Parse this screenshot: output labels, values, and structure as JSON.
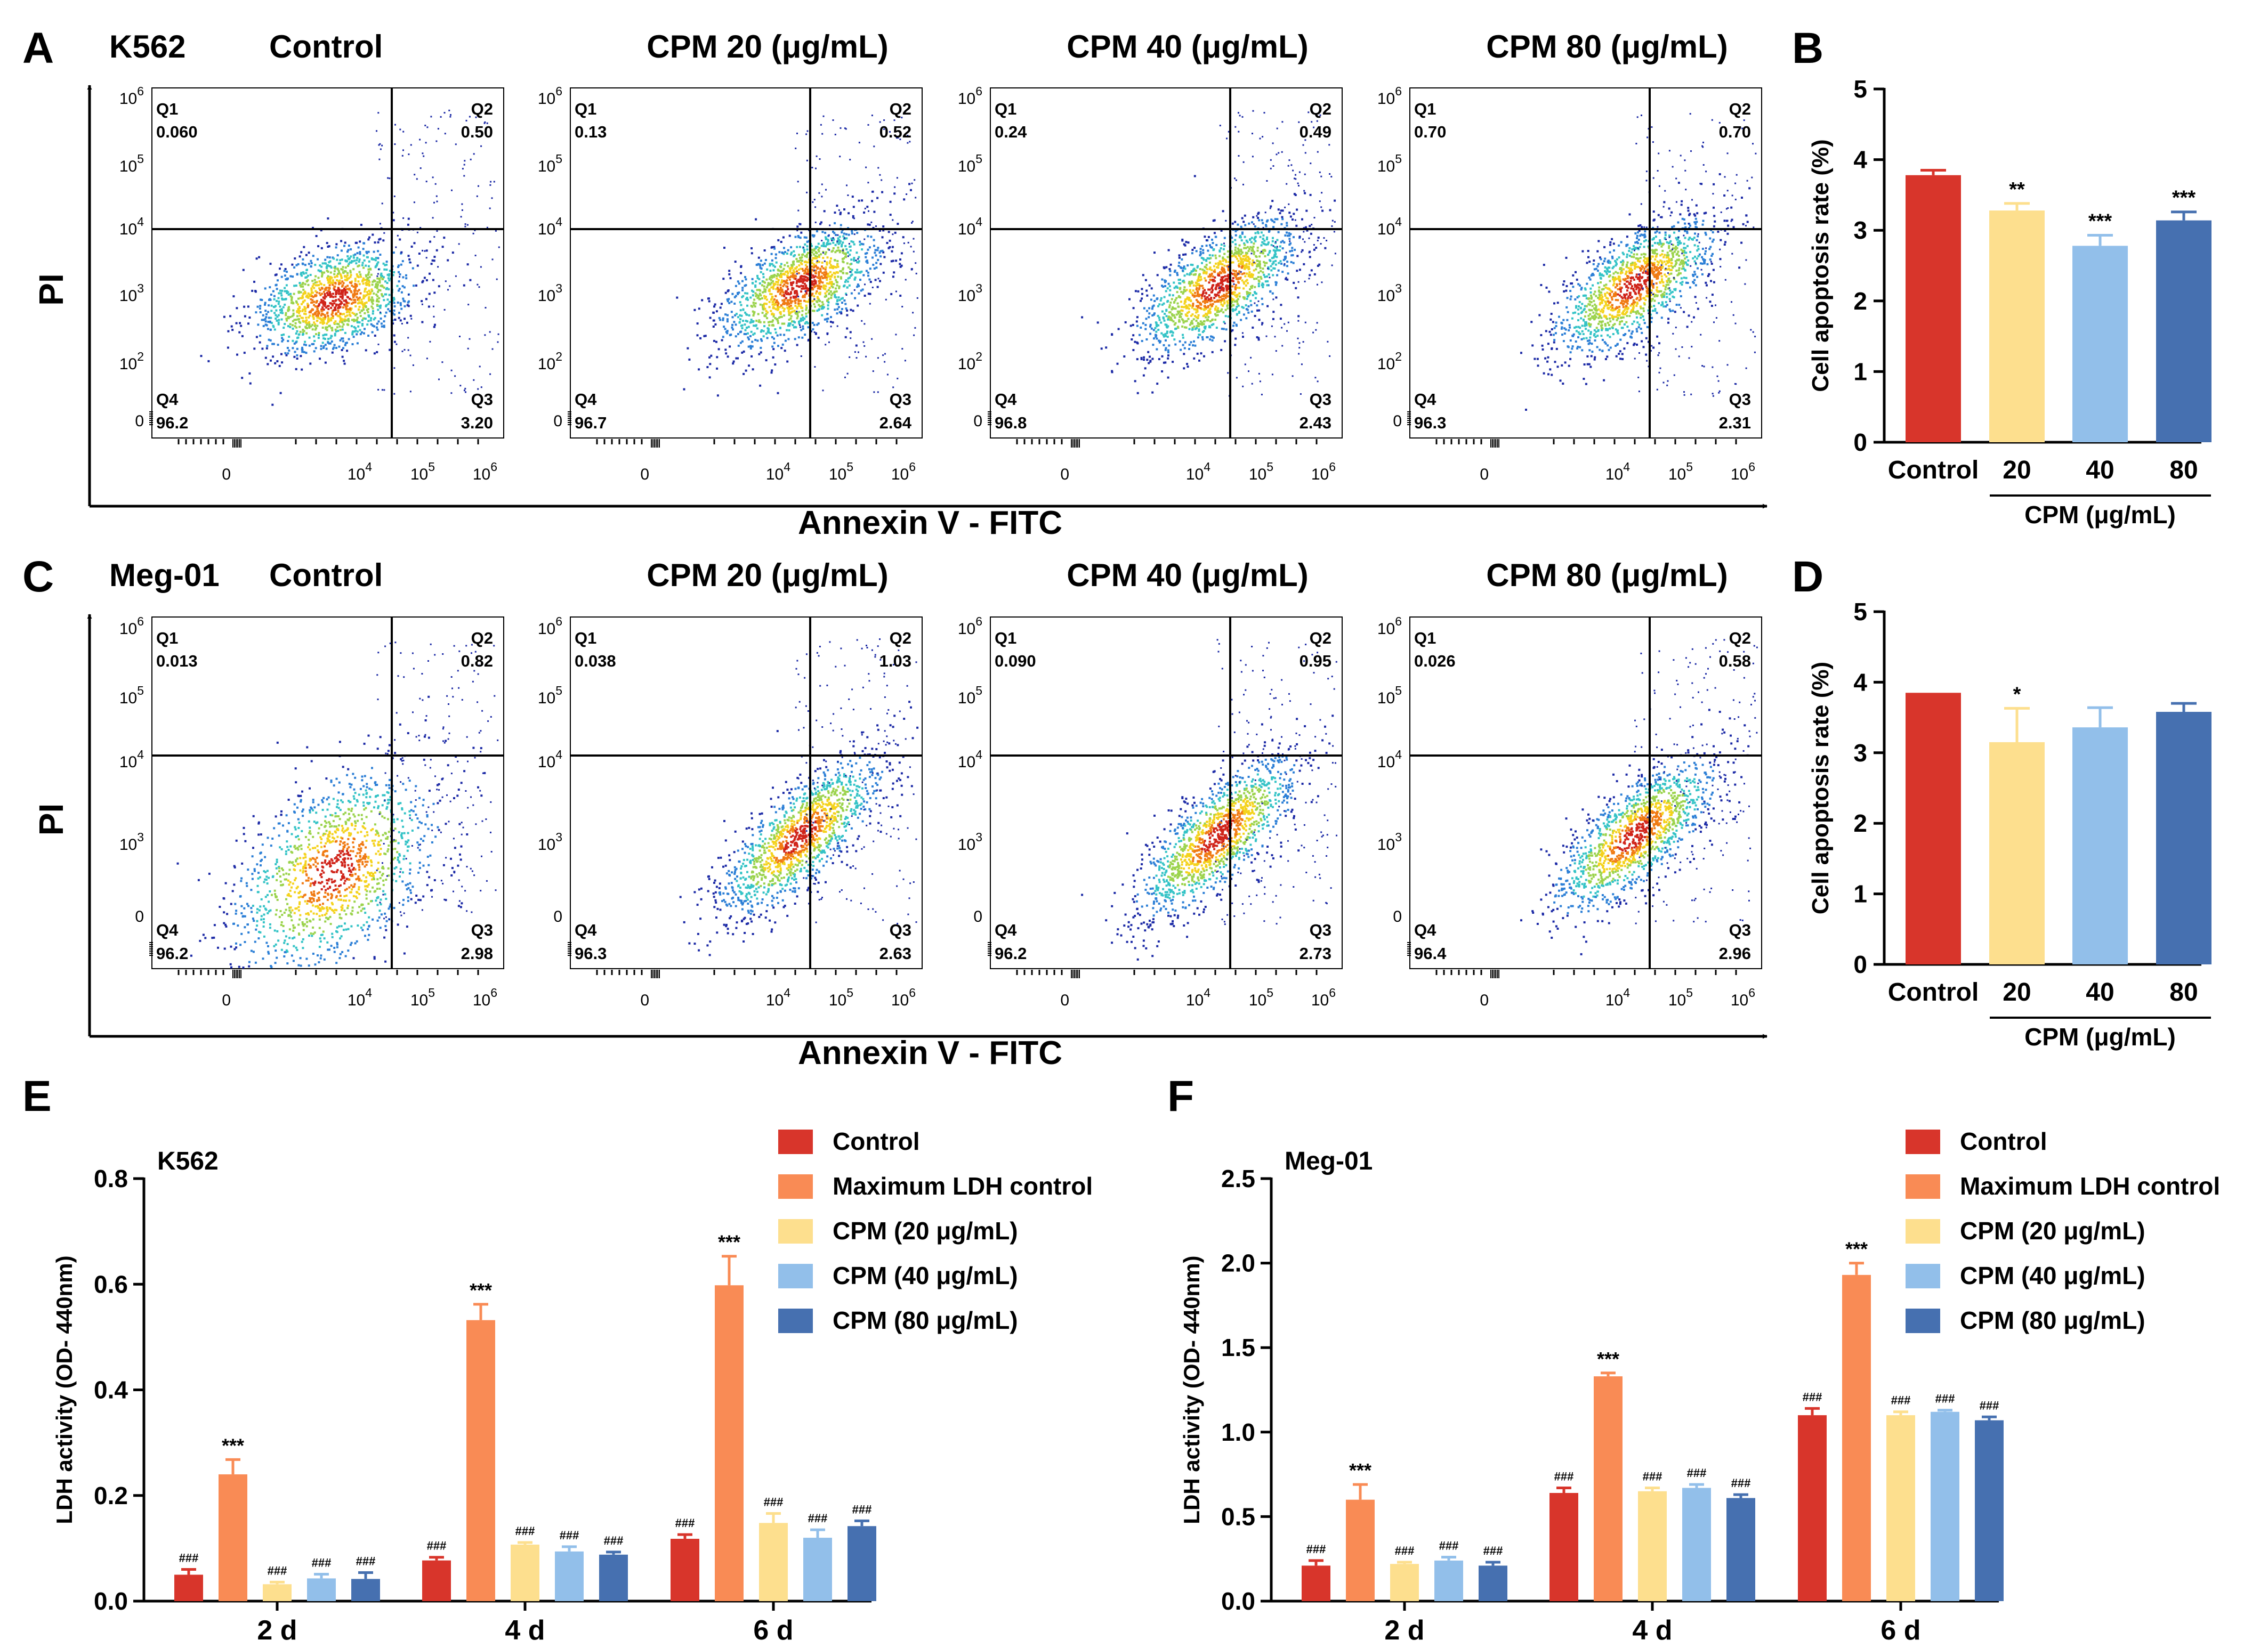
{
  "colors": {
    "control": "#d8352b",
    "max_ldh": "#f98b55",
    "cpm20": "#fddf8e",
    "cpm40": "#92bfea",
    "cpm80": "#4670b0",
    "axis": "#000000",
    "flow_density": [
      "#1c2aa6",
      "#2c7fd6",
      "#34c3c6",
      "#9bd34c",
      "#f4d21c",
      "#f07a12",
      "#d0241a"
    ]
  },
  "panels": {
    "A": {
      "letter": "A",
      "cell_line": "K562",
      "titles": [
        "Control",
        "CPM 20 (μg/mL)",
        "CPM 40 (μg/mL)",
        "CPM 80 (μg/mL)"
      ],
      "y_axis_label": "PI",
      "x_axis_label": "Annexin V - FITC"
    },
    "C": {
      "letter": "C",
      "cell_line": "Meg-01",
      "titles": [
        "Control",
        "CPM 20 (μg/mL)",
        "CPM 40 (μg/mL)",
        "CPM 80 (μg/mL)"
      ],
      "y_axis_label": "PI",
      "x_axis_label": "Annexin V - FITC"
    },
    "B": {
      "letter": "B"
    },
    "D": {
      "letter": "D"
    },
    "E": {
      "letter": "E"
    },
    "F": {
      "letter": "F"
    }
  },
  "flow_labels": {
    "y_ticks_A": [
      {
        "base": "10",
        "exp": "6"
      },
      {
        "base": "10",
        "exp": "5"
      },
      {
        "base": "10",
        "exp": "4"
      },
      {
        "base": "10",
        "exp": "3"
      },
      {
        "base": "10",
        "exp": "2"
      },
      {
        "base": "0",
        "exp": ""
      }
    ],
    "y_ticks_C": [
      {
        "base": "10",
        "exp": "6"
      },
      {
        "base": "10",
        "exp": "5"
      },
      {
        "base": "10",
        "exp": "4"
      },
      {
        "base": "10",
        "exp": "3"
      },
      {
        "base": "0",
        "exp": ""
      }
    ],
    "x_ticks": [
      {
        "base": "0",
        "exp": ""
      },
      {
        "base": "10",
        "exp": "4"
      },
      {
        "base": "10",
        "exp": "5"
      },
      {
        "base": "10",
        "exp": "6"
      }
    ],
    "quadrant_names": [
      "Q1",
      "Q2",
      "Q3",
      "Q4"
    ]
  },
  "chart_data": [
    {
      "id": "A",
      "type": "flow-cytometry-quadrants",
      "cell_line": "K562",
      "x_label": "Annexin V - FITC",
      "y_label": "PI",
      "plots": [
        {
          "title": "Control",
          "Q1": "0.060",
          "Q2": "0.50",
          "Q3": "3.20",
          "Q4": "96.2"
        },
        {
          "title": "CPM 20 (μg/mL)",
          "Q1": "0.13",
          "Q2": "0.52",
          "Q3": "2.64",
          "Q4": "96.7"
        },
        {
          "title": "CPM 40 (μg/mL)",
          "Q1": "0.24",
          "Q2": "0.49",
          "Q3": "2.43",
          "Q4": "96.8"
        },
        {
          "title": "CPM 80 (μg/mL)",
          "Q1": "0.70",
          "Q2": "0.70",
          "Q3": "2.31",
          "Q4": "96.3"
        }
      ]
    },
    {
      "id": "B",
      "type": "bar",
      "ylabel": "Cell apoptosis rate (%)",
      "ylim": [
        0,
        5
      ],
      "yticks": [
        "0",
        "1",
        "2",
        "3",
        "4",
        "5"
      ],
      "categories": [
        "Control",
        "20",
        "40",
        "80"
      ],
      "group_label": "CPM (μg/mL)",
      "values": [
        3.78,
        3.28,
        2.78,
        3.14
      ],
      "errors": [
        0.07,
        0.1,
        0.15,
        0.12
      ],
      "significance": [
        "",
        "**",
        "***",
        "***"
      ]
    },
    {
      "id": "C",
      "type": "flow-cytometry-quadrants",
      "cell_line": "Meg-01",
      "x_label": "Annexin V - FITC",
      "y_label": "PI",
      "plots": [
        {
          "title": "Control",
          "Q1": "0.013",
          "Q2": "0.82",
          "Q3": "2.98",
          "Q4": "96.2"
        },
        {
          "title": "CPM 20 (μg/mL)",
          "Q1": "0.038",
          "Q2": "1.03",
          "Q3": "2.63",
          "Q4": "96.3"
        },
        {
          "title": "CPM 40 (μg/mL)",
          "Q1": "0.090",
          "Q2": "0.95",
          "Q3": "2.73",
          "Q4": "96.2"
        },
        {
          "title": "CPM 80 (μg/mL)",
          "Q1": "0.026",
          "Q2": "0.58",
          "Q3": "2.96",
          "Q4": "96.4"
        }
      ]
    },
    {
      "id": "D",
      "type": "bar",
      "ylabel": "Cell apoptosis rate (%)",
      "ylim": [
        0,
        5
      ],
      "yticks": [
        "0",
        "1",
        "2",
        "3",
        "4",
        "5"
      ],
      "categories": [
        "Control",
        "20",
        "40",
        "80"
      ],
      "group_label": "CPM (μg/mL)",
      "values": [
        3.85,
        3.15,
        3.36,
        3.58
      ],
      "errors": [
        0.0,
        0.48,
        0.28,
        0.12
      ],
      "significance": [
        "",
        "*",
        "",
        ""
      ]
    },
    {
      "id": "E",
      "type": "grouped-bar",
      "subtitle": "K562",
      "ylabel": "LDH activity (OD- 440nm)",
      "ylim": [
        0,
        0.8
      ],
      "yticks": [
        "0.0",
        "0.2",
        "0.4",
        "0.6",
        "0.8"
      ],
      "categories": [
        "2 d",
        "4 d",
        "6 d"
      ],
      "series": [
        {
          "name": "Control",
          "values": [
            0.05,
            0.077,
            0.118
          ],
          "errors": [
            0.01,
            0.006,
            0.008
          ],
          "labels": [
            "###",
            "###",
            "###"
          ]
        },
        {
          "name": "Maximum LDH control",
          "values": [
            0.24,
            0.532,
            0.598
          ],
          "errors": [
            0.028,
            0.03,
            0.055
          ],
          "labels": [
            "***",
            "***",
            "***"
          ]
        },
        {
          "name": "CPM (20 μg/mL)",
          "values": [
            0.032,
            0.107,
            0.148
          ],
          "errors": [
            0.004,
            0.004,
            0.018
          ],
          "labels": [
            "###",
            "###",
            "###"
          ]
        },
        {
          "name": "CPM (40 μg/mL)",
          "values": [
            0.043,
            0.094,
            0.12
          ],
          "errors": [
            0.008,
            0.009,
            0.015
          ],
          "labels": [
            "###",
            "###",
            "###"
          ]
        },
        {
          "name": "CPM (80 μg/mL)",
          "values": [
            0.042,
            0.088,
            0.142
          ],
          "errors": [
            0.012,
            0.005,
            0.01
          ],
          "labels": [
            "###",
            "###",
            "###"
          ]
        }
      ]
    },
    {
      "id": "F",
      "type": "grouped-bar",
      "subtitle": "Meg-01",
      "ylabel": "LDH activity (OD- 440nm)",
      "ylim": [
        0,
        2.5
      ],
      "yticks": [
        "0.0",
        "0.5",
        "1.0",
        "1.5",
        "2.0",
        "2.5"
      ],
      "categories": [
        "2 d",
        "4 d",
        "6 d"
      ],
      "series": [
        {
          "name": "Control",
          "values": [
            0.21,
            0.64,
            1.1
          ],
          "errors": [
            0.03,
            0.03,
            0.04
          ],
          "labels": [
            "###",
            "###",
            "###"
          ]
        },
        {
          "name": "Maximum LDH control",
          "values": [
            0.6,
            1.33,
            1.93
          ],
          "errors": [
            0.09,
            0.02,
            0.07
          ],
          "labels": [
            "***",
            "***",
            "***"
          ]
        },
        {
          "name": "CPM (20 μg/mL)",
          "values": [
            0.22,
            0.65,
            1.1
          ],
          "errors": [
            0.01,
            0.02,
            0.02
          ],
          "labels": [
            "###",
            "###",
            "###"
          ]
        },
        {
          "name": "CPM (40 μg/mL)",
          "values": [
            0.24,
            0.67,
            1.12
          ],
          "errors": [
            0.02,
            0.02,
            0.01
          ],
          "labels": [
            "###",
            "###",
            "###"
          ]
        },
        {
          "name": "CPM (80 μg/mL)",
          "values": [
            0.21,
            0.61,
            1.07
          ],
          "errors": [
            0.02,
            0.02,
            0.02
          ],
          "labels": [
            "###",
            "###",
            "###"
          ]
        }
      ]
    }
  ]
}
